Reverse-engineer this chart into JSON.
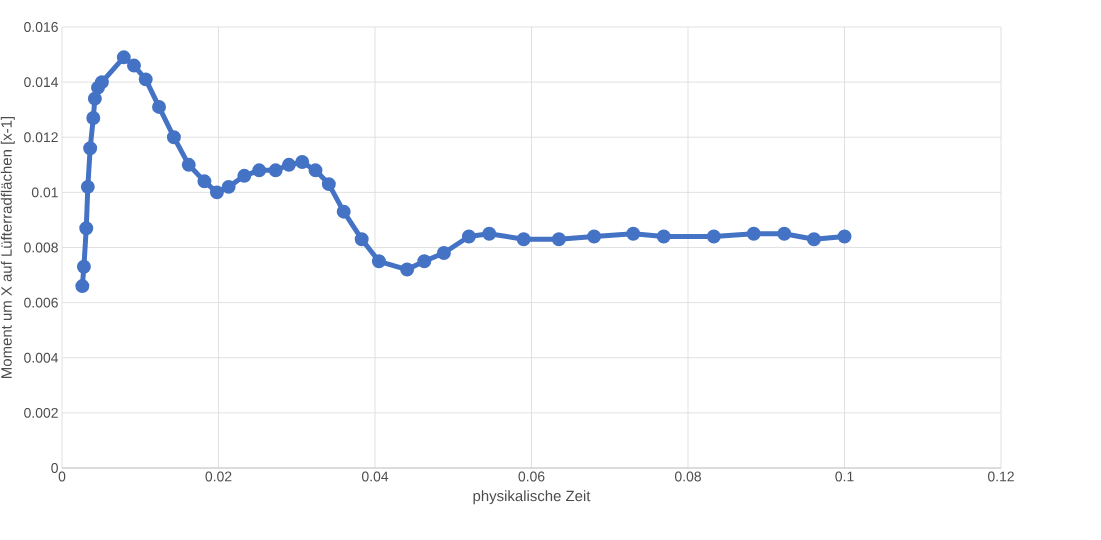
{
  "chart_data": {
    "type": "line",
    "xlabel": "physikalische Zeit",
    "ylabel": "Moment um X  auf Lüfterradflächen [x-1]",
    "x": [
      0.0026,
      0.0028,
      0.0031,
      0.0033,
      0.0036,
      0.004,
      0.0042,
      0.0046,
      0.0051,
      0.0079,
      0.0092,
      0.0107,
      0.0124,
      0.0143,
      0.0162,
      0.0182,
      0.0198,
      0.0213,
      0.0233,
      0.0252,
      0.0273,
      0.029,
      0.0307,
      0.0324,
      0.0341,
      0.036,
      0.0383,
      0.0405,
      0.0441,
      0.0463,
      0.0488,
      0.052,
      0.0546,
      0.059,
      0.0635,
      0.068,
      0.073,
      0.0769,
      0.0833,
      0.0884,
      0.0923,
      0.0961,
      0.1
    ],
    "series": [
      {
        "color": "#4472c4",
        "values": [
          0.0066,
          0.0073,
          0.0087,
          0.0102,
          0.0116,
          0.0127,
          0.0134,
          0.0138,
          0.014,
          0.0149,
          0.0146,
          0.0141,
          0.0131,
          0.012,
          0.011,
          0.0104,
          0.01,
          0.0102,
          0.0106,
          0.0108,
          0.0108,
          0.011,
          0.0111,
          0.0108,
          0.0103,
          0.0093,
          0.0083,
          0.0075,
          0.0072,
          0.0075,
          0.0078,
          0.0084,
          0.0085,
          0.0083,
          0.0083,
          0.0084,
          0.0085,
          0.0084,
          0.0084,
          0.0085,
          0.0085,
          0.0083,
          0.0084
        ]
      }
    ],
    "xlim": [
      0,
      0.12
    ],
    "ylim": [
      0,
      0.016
    ],
    "xticks": [
      0,
      0.02,
      0.04,
      0.06,
      0.08,
      0.1,
      0.12
    ],
    "yticks": [
      0,
      0.002,
      0.004,
      0.006,
      0.008,
      0.01,
      0.012,
      0.014,
      0.016
    ],
    "grid": true,
    "marker": "circle",
    "line_style": "solid"
  }
}
